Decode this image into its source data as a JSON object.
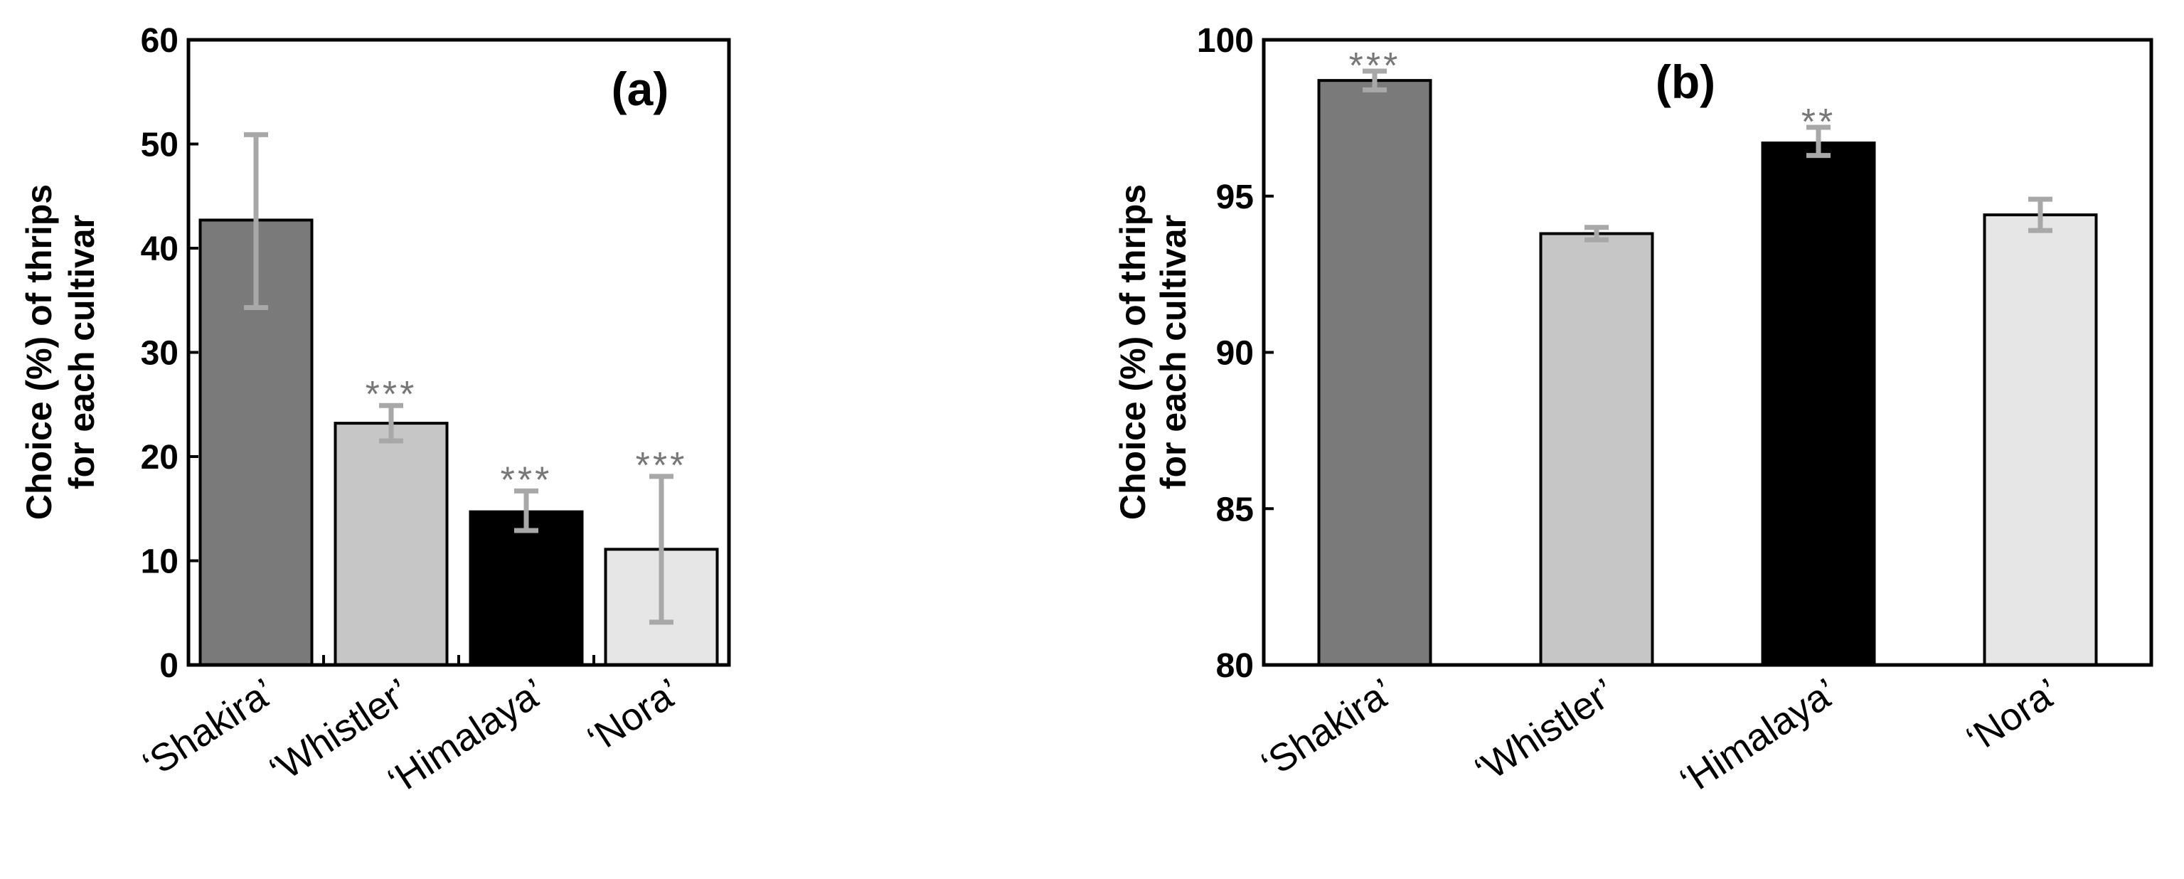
{
  "chart_data": [
    {
      "panel": "a",
      "type": "bar",
      "title": "(a)",
      "ylabel_lines": [
        "Choice (%) of thrips",
        "for each cultivar"
      ],
      "ylim": [
        0,
        60
      ],
      "yticks": [
        0,
        10,
        20,
        30,
        40,
        50,
        60
      ],
      "categories": [
        "‘Shakira’",
        "‘Whistler’",
        "‘Himalaya’",
        "‘Nora’"
      ],
      "values": [
        42.7,
        23.2,
        14.7,
        11.1
      ],
      "error_low": [
        34.3,
        21.5,
        12.9,
        4.1
      ],
      "error_high": [
        50.9,
        24.9,
        16.7,
        18.1
      ],
      "significance": [
        "",
        "***",
        "***",
        "***"
      ],
      "bar_colors": [
        "#7a7a7a",
        "#c6c6c6",
        "#000000",
        "#e6e6e6"
      ]
    },
    {
      "panel": "b",
      "type": "bar",
      "title": "(b)",
      "ylabel_lines": [
        "Choice (%) of thrips",
        "for each cultivar"
      ],
      "ylim": [
        80,
        100
      ],
      "yticks": [
        80,
        85,
        90,
        95,
        100
      ],
      "categories": [
        "‘Shakira’",
        "‘Whistler’",
        "‘Himalaya’",
        "‘Nora’"
      ],
      "values": [
        98.7,
        93.8,
        96.7,
        94.4
      ],
      "error_low": [
        98.4,
        93.6,
        96.3,
        93.9
      ],
      "error_high": [
        99.0,
        94.0,
        97.2,
        94.9
      ],
      "significance": [
        "***",
        "",
        "**",
        ""
      ],
      "bar_colors": [
        "#7a7a7a",
        "#c6c6c6",
        "#000000",
        "#e6e6e6"
      ]
    }
  ]
}
